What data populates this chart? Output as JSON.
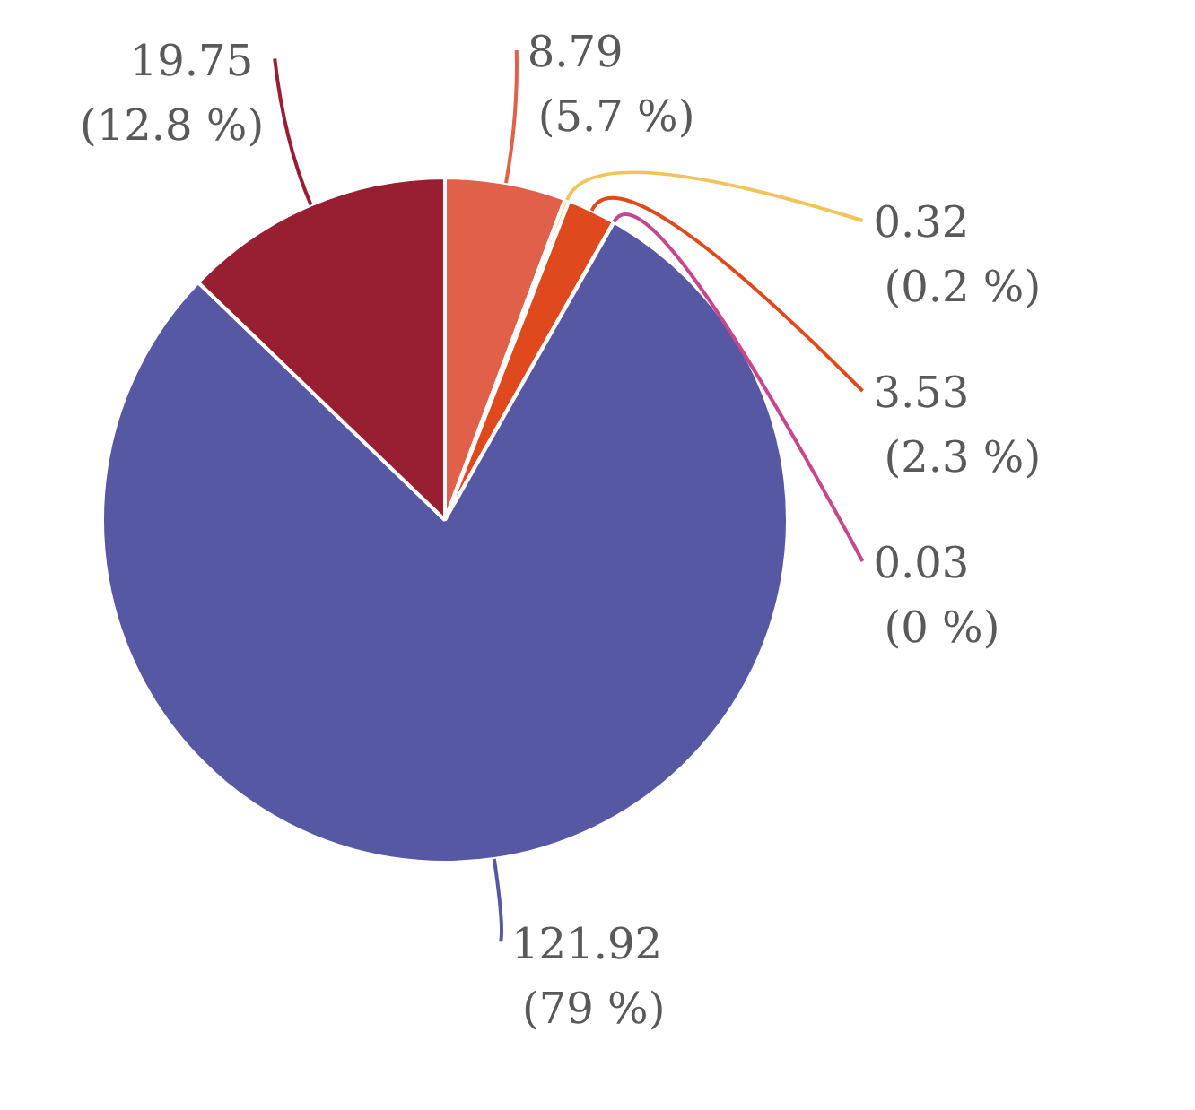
{
  "chart_data": {
    "type": "pie",
    "categories": [
      null,
      null,
      null,
      null,
      null,
      null
    ],
    "values": [
      8.79,
      0.32,
      3.53,
      0.03,
      121.92,
      19.75
    ],
    "colors": [
      "#e0604a",
      "#f0c45a",
      "#e0481e",
      "#c8468c",
      "#5658a4",
      "#981e32"
    ],
    "value_labels": [
      "8.79 (5.7 %)",
      "0.32 (0.2 %)",
      "3.53 (2.3 %)",
      "0.03 (0 %)",
      "121.92 (79 %)",
      "19.75 (12.8 %)"
    ],
    "legend": false
  }
}
